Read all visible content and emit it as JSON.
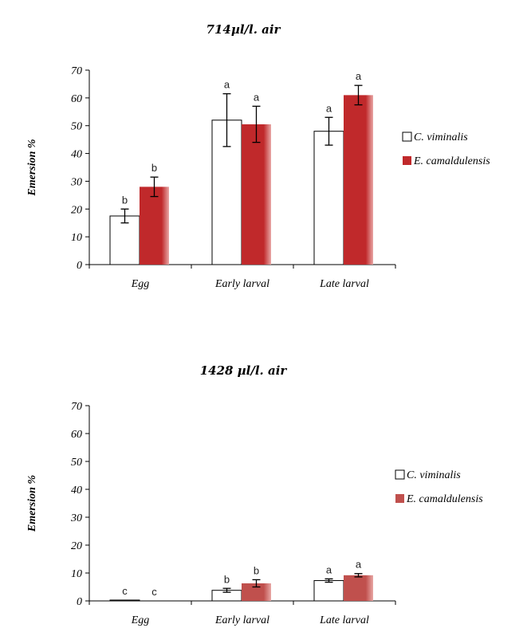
{
  "chart_data": [
    {
      "type": "bar",
      "title": "714µl/l. air",
      "xlabel": "",
      "ylabel": "Emersion %",
      "ylim": [
        0,
        70
      ],
      "yticks": [
        0,
        10,
        20,
        30,
        40,
        50,
        60,
        70
      ],
      "categories": [
        "Egg",
        "Early larval",
        "Late larval"
      ],
      "series": [
        {
          "name": "C. viminalis",
          "color": "#ffffff",
          "values": [
            17.5,
            52,
            48
          ],
          "errors": [
            2.5,
            9.5,
            5.0
          ],
          "letters": [
            "b",
            "a",
            "a"
          ]
        },
        {
          "name": "E. camaldulensis",
          "color": "#c0292b",
          "values": [
            28,
            50.5,
            61
          ],
          "errors": [
            3.5,
            6.5,
            3.5
          ],
          "letters": [
            "b",
            "a",
            "a"
          ]
        }
      ],
      "grid": false,
      "legend": "right"
    },
    {
      "type": "bar",
      "title": "1428 µl/l. air",
      "xlabel": "",
      "ylabel": "Emersion %",
      "ylim": [
        0,
        70
      ],
      "yticks": [
        0,
        10,
        20,
        30,
        40,
        50,
        60,
        70
      ],
      "categories": [
        "Egg",
        "Early larval",
        "Late larval"
      ],
      "series": [
        {
          "name": "C. viminalis",
          "color": "#ffffff",
          "values": [
            0.3,
            3.8,
            7.3
          ],
          "errors": [
            0,
            0.7,
            0.6
          ],
          "letters": [
            "c",
            "b",
            "a"
          ]
        },
        {
          "name": "E. camaldulensis",
          "color": "#c0504d",
          "values": [
            0,
            6.3,
            9.2
          ],
          "errors": [
            0,
            1.3,
            0.6
          ],
          "letters": [
            "c",
            "b",
            "a"
          ]
        }
      ],
      "grid": false,
      "legend": "right"
    }
  ]
}
